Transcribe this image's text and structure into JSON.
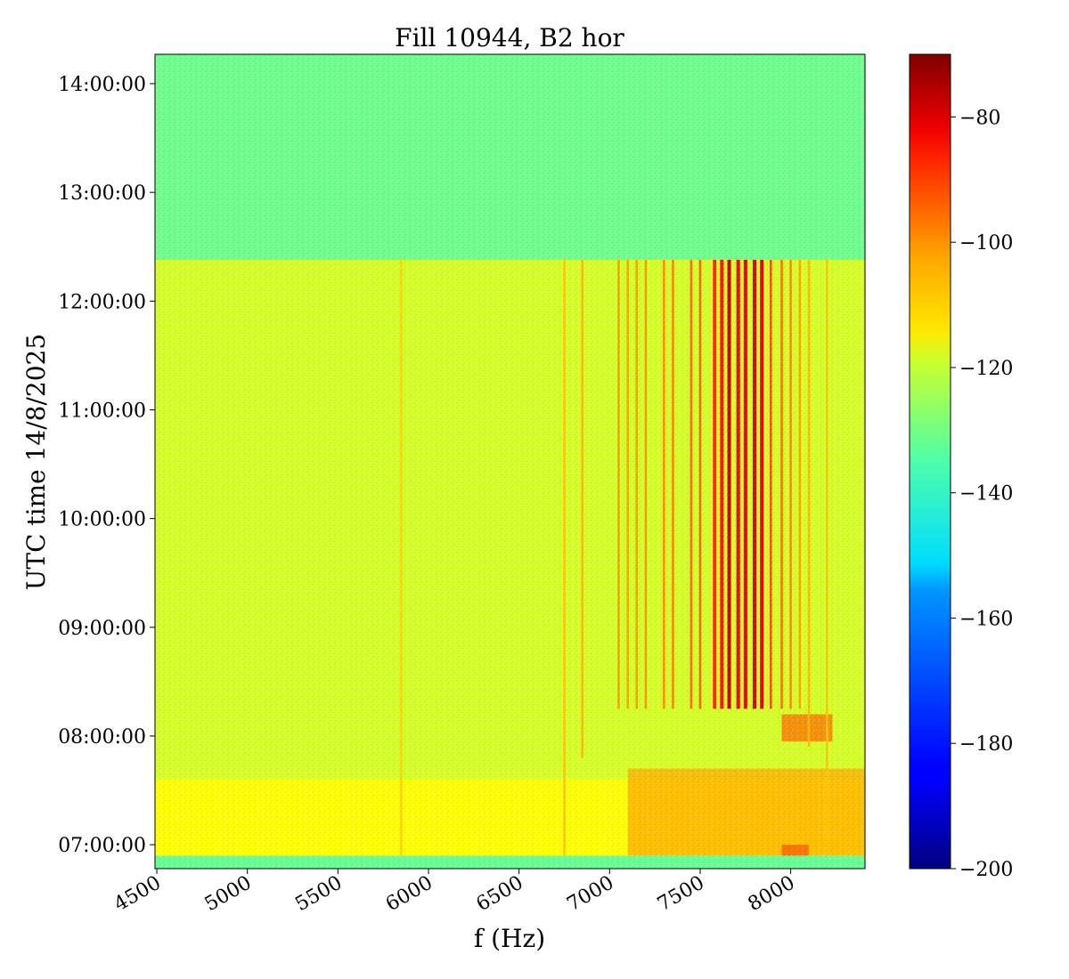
{
  "chart_data": {
    "type": "heatmap",
    "title": "Fill 10944, B2 hor",
    "xlabel": "f (Hz)",
    "ylabel": "UTC time 14/8/2025",
    "xlim": [
      4490,
      8410
    ],
    "x_ticks": [
      {
        "value": 4500,
        "label": "4500"
      },
      {
        "value": 5000,
        "label": "5000"
      },
      {
        "value": 5500,
        "label": "5500"
      },
      {
        "value": 6000,
        "label": "6000"
      },
      {
        "value": 6500,
        "label": "6500"
      },
      {
        "value": 7000,
        "label": "7000"
      },
      {
        "value": 7500,
        "label": "7500"
      },
      {
        "value": 8000,
        "label": "8000"
      }
    ],
    "ylim_hours": [
      6.78,
      14.27
    ],
    "y_ticks": [
      {
        "value": 7,
        "label": "07:00:00"
      },
      {
        "value": 8,
        "label": "08:00:00"
      },
      {
        "value": 9,
        "label": "09:00:00"
      },
      {
        "value": 10,
        "label": "10:00:00"
      },
      {
        "value": 11,
        "label": "11:00:00"
      },
      {
        "value": 12,
        "label": "12:00:00"
      },
      {
        "value": 13,
        "label": "13:00:00"
      },
      {
        "value": 14,
        "label": "14:00:00"
      }
    ],
    "colorbar": {
      "colormap": "jet",
      "range": [
        -200,
        -70
      ],
      "ticks": [
        {
          "value": -80,
          "label": "−80"
        },
        {
          "value": -100,
          "label": "−100"
        },
        {
          "value": -120,
          "label": "−120"
        },
        {
          "value": -140,
          "label": "−140"
        },
        {
          "value": -160,
          "label": "−160"
        },
        {
          "value": -180,
          "label": "−180"
        },
        {
          "value": -200,
          "label": "−200"
        }
      ]
    },
    "background_levels": [
      {
        "from_hour": 6.78,
        "to_hour": 6.9,
        "level": -138
      },
      {
        "from_hour": 6.9,
        "to_hour": 7.6,
        "level": -119
      },
      {
        "from_hour": 7.6,
        "to_hour": 12.38,
        "level": -124
      },
      {
        "from_hour": 12.38,
        "to_hour": 14.27,
        "level": -137
      }
    ],
    "lines": [
      {
        "freq": 7050,
        "from_hour": 8.25,
        "to_hour": 12.38,
        "level": -107
      },
      {
        "freq": 7100,
        "from_hour": 8.25,
        "to_hour": 12.38,
        "level": -107
      },
      {
        "freq": 7150,
        "from_hour": 8.25,
        "to_hour": 12.38,
        "level": -106
      },
      {
        "freq": 7200,
        "from_hour": 8.25,
        "to_hour": 12.38,
        "level": -106
      },
      {
        "freq": 7300,
        "from_hour": 8.25,
        "to_hour": 12.38,
        "level": -104
      },
      {
        "freq": 7350,
        "from_hour": 8.25,
        "to_hour": 12.38,
        "level": -103
      },
      {
        "freq": 7450,
        "from_hour": 8.25,
        "to_hour": 12.38,
        "level": -100
      },
      {
        "freq": 7500,
        "from_hour": 8.25,
        "to_hour": 12.38,
        "level": -99
      },
      {
        "freq": 7580,
        "from_hour": 8.25,
        "to_hour": 12.38,
        "level": -92
      },
      {
        "freq": 7620,
        "from_hour": 8.25,
        "to_hour": 12.38,
        "level": -88
      },
      {
        "freq": 7660,
        "from_hour": 8.25,
        "to_hour": 12.38,
        "level": -80
      },
      {
        "freq": 7710,
        "from_hour": 8.25,
        "to_hour": 12.38,
        "level": -85
      },
      {
        "freq": 7750,
        "from_hour": 8.25,
        "to_hour": 12.38,
        "level": -84
      },
      {
        "freq": 7800,
        "from_hour": 8.25,
        "to_hour": 12.38,
        "level": -82
      },
      {
        "freq": 7840,
        "from_hour": 8.25,
        "to_hour": 12.38,
        "level": -85
      },
      {
        "freq": 7890,
        "from_hour": 8.25,
        "to_hour": 12.38,
        "level": -95
      },
      {
        "freq": 7950,
        "from_hour": 8.25,
        "to_hour": 12.38,
        "level": -100
      },
      {
        "freq": 8000,
        "from_hour": 8.25,
        "to_hour": 12.38,
        "level": -104
      },
      {
        "freq": 8050,
        "from_hour": 8.25,
        "to_hour": 12.38,
        "level": -108
      },
      {
        "freq": 8100,
        "from_hour": 7.9,
        "to_hour": 12.38,
        "level": -110
      },
      {
        "freq": 8200,
        "from_hour": 6.9,
        "to_hour": 12.38,
        "level": -112
      },
      {
        "freq": 5850,
        "from_hour": 6.9,
        "to_hour": 12.38,
        "level": -113
      },
      {
        "freq": 6750,
        "from_hour": 6.9,
        "to_hour": 12.38,
        "level": -112
      },
      {
        "freq": 6850,
        "from_hour": 7.8,
        "to_hour": 12.38,
        "level": -110
      }
    ],
    "patches": [
      {
        "from_freq": 7100,
        "to_freq": 8410,
        "from_hour": 6.9,
        "to_hour": 7.7,
        "level": -108
      },
      {
        "from_freq": 7950,
        "to_freq": 8230,
        "from_hour": 7.95,
        "to_hour": 8.2,
        "level": -100
      },
      {
        "from_freq": 7950,
        "to_freq": 8100,
        "from_hour": 6.9,
        "to_hour": 7.0,
        "level": -98
      }
    ]
  }
}
